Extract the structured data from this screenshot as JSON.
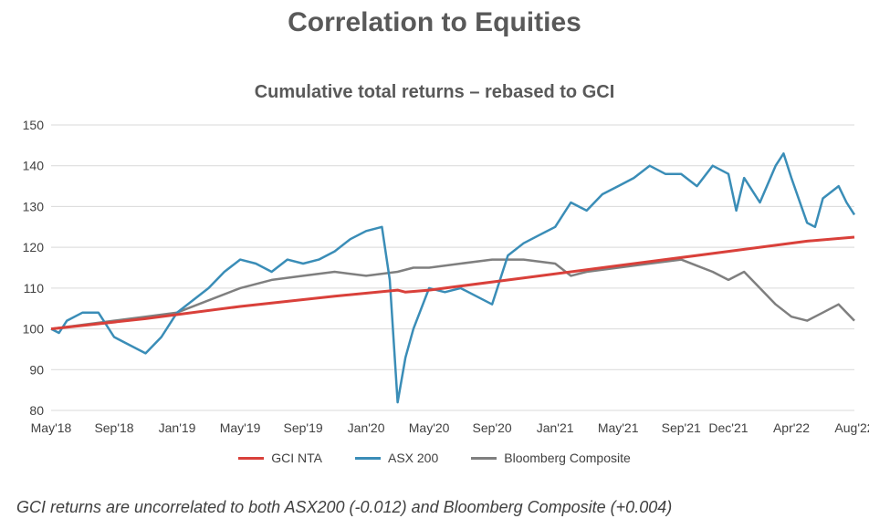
{
  "header": {
    "title": "Correlation to Equities",
    "subtitle": "Cumulative total returns – rebased to GCI"
  },
  "footnote": "GCI returns are uncorrelated to both ASX200 (-0.012) and Bloomberg Composite (+0.004)",
  "chart_data": {
    "type": "line",
    "title": "Cumulative total returns – rebased to GCI",
    "xlabel": "",
    "ylabel": "",
    "ylim": [
      80,
      150
    ],
    "yticks": [
      80,
      90,
      100,
      110,
      120,
      130,
      140,
      150
    ],
    "grid": true,
    "legend_position": "bottom-center",
    "x_tick_labels": [
      "May'18",
      "Sep'18",
      "Jan'19",
      "May'19",
      "Sep'19",
      "Jan'20",
      "May'20",
      "Sep'20",
      "Jan'21",
      "May'21",
      "Sep'21",
      "Dec'21",
      "Apr'22",
      "Aug'22"
    ],
    "x_tick_months": [
      0,
      4,
      8,
      12,
      16,
      20,
      24,
      28,
      32,
      36,
      40,
      43,
      47,
      51
    ],
    "x_range_months": [
      0,
      51
    ],
    "series": [
      {
        "name": "GCI NTA",
        "color": "#d9403a",
        "x": [
          0,
          6,
          12,
          18,
          22,
          22.5,
          24,
          30,
          36,
          42,
          48,
          51
        ],
        "y": [
          100,
          102.5,
          105.5,
          108,
          109.5,
          109,
          109.5,
          112.5,
          115.5,
          118.5,
          121.5,
          122.5
        ]
      },
      {
        "name": "ASX 200",
        "color": "#3a8db7",
        "x": [
          0,
          0.5,
          1,
          2,
          3,
          4,
          5,
          6,
          7,
          8,
          9,
          10,
          11,
          12,
          13,
          14,
          15,
          16,
          17,
          18,
          19,
          20,
          21,
          21.5,
          22,
          22.5,
          23,
          24,
          25,
          26,
          27,
          28,
          29,
          30,
          31,
          32,
          33,
          34,
          35,
          36,
          37,
          38,
          39,
          40,
          41,
          42,
          43,
          43.5,
          44,
          45,
          46,
          46.5,
          47,
          48,
          48.5,
          49,
          50,
          50.5,
          51
        ],
        "y": [
          100,
          99,
          102,
          104,
          104,
          98,
          96,
          94,
          98,
          104,
          107,
          110,
          114,
          117,
          116,
          114,
          117,
          116,
          117,
          119,
          122,
          124,
          125,
          112,
          82,
          93,
          100,
          110,
          109,
          110,
          108,
          106,
          118,
          121,
          123,
          125,
          131,
          129,
          133,
          135,
          137,
          140,
          138,
          138,
          135,
          140,
          138,
          129,
          137,
          131,
          140,
          143,
          137,
          126,
          125,
          132,
          135,
          131,
          128
        ]
      },
      {
        "name": "Bloomberg Composite",
        "color": "#7f7f7f",
        "x": [
          0,
          2,
          4,
          6,
          8,
          10,
          12,
          14,
          16,
          18,
          20,
          22,
          23,
          24,
          26,
          28,
          30,
          32,
          33,
          34,
          36,
          38,
          40,
          42,
          43,
          44,
          45,
          46,
          47,
          48,
          49,
          50,
          51
        ],
        "y": [
          100,
          101,
          102,
          103,
          104,
          107,
          110,
          112,
          113,
          114,
          113,
          114,
          115,
          115,
          116,
          117,
          117,
          116,
          113,
          114,
          115,
          116,
          117,
          114,
          112,
          114,
          110,
          106,
          103,
          102,
          104,
          106,
          102
        ]
      }
    ]
  }
}
